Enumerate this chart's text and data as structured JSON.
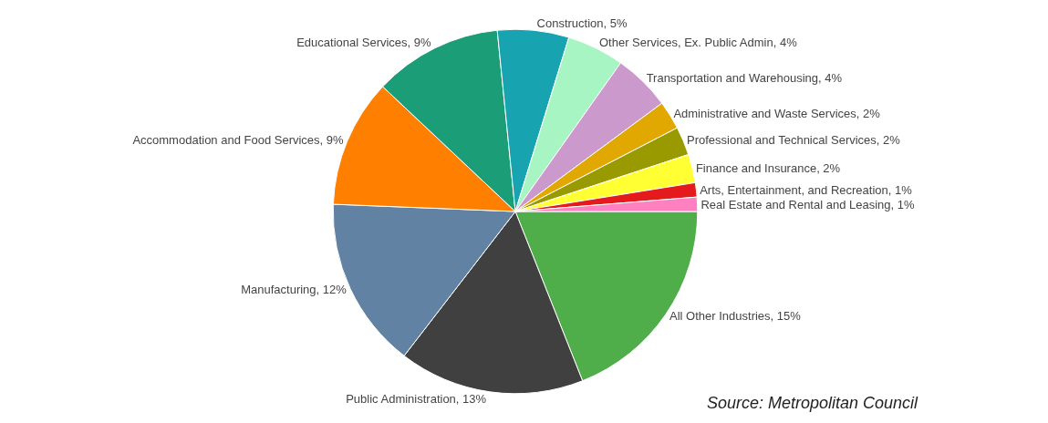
{
  "chart_data": {
    "type": "pie",
    "categories": [
      "All Other Industries",
      "Public Administration",
      "Manufacturing",
      "Accommodation and Food Services",
      "Educational Services",
      "Construction",
      "Other Services, Ex. Public Admin",
      "Transportation and Warehousing",
      "Administrative and Waste Services",
      "Professional and Technical Services",
      "Finance and Insurance",
      "Arts, Entertainment, and Recreation",
      "Real Estate and Rental and Leasing"
    ],
    "values": [
      15,
      13,
      12,
      9,
      9,
      5,
      4,
      4,
      2,
      2,
      2,
      1,
      1
    ],
    "value_labels": [
      "15%",
      "13%",
      "12%",
      "9%",
      "9%",
      "5%",
      "4%",
      "4%",
      "2%",
      "2%",
      "2%",
      "1%",
      "1%"
    ],
    "colors": [
      "#4fae4a",
      "#404040",
      "#6282a4",
      "#ff8000",
      "#1b9e78",
      "#17a4b0",
      "#a8f5c4",
      "#cc99cc",
      "#e0a800",
      "#999900",
      "#ffff33",
      "#e41a1c",
      "#ff80c0"
    ],
    "legend": false,
    "annotations": [
      "Source: Metropolitan Council"
    ]
  }
}
